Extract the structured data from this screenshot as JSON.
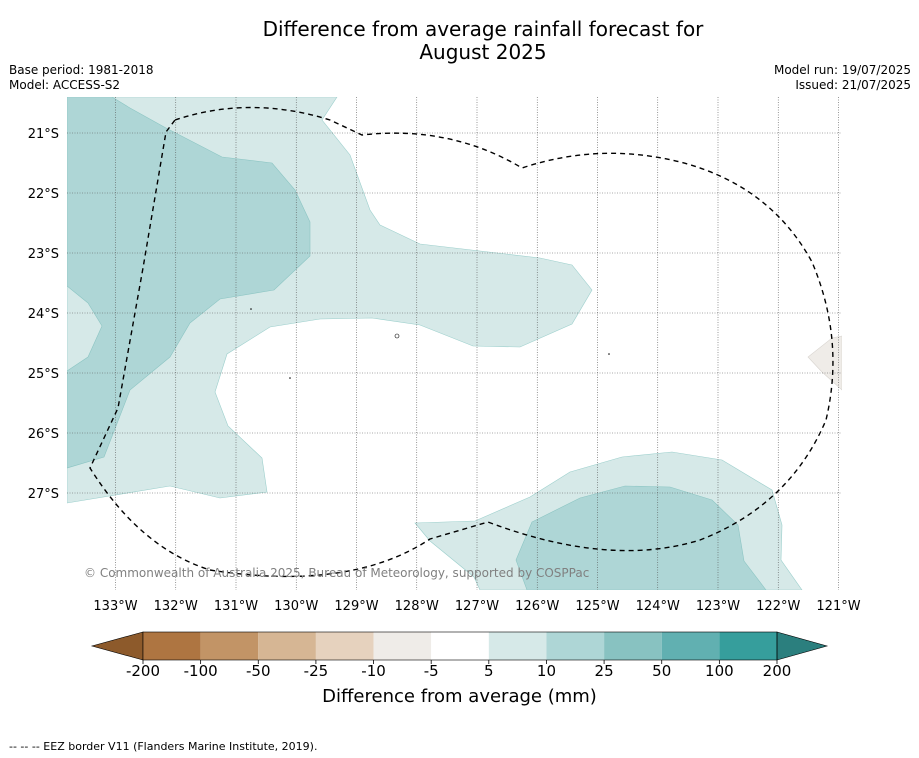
{
  "title_line1": "Difference from average rainfall forecast for",
  "title_line2": "August 2025",
  "base_period": "Base period: 1981-2018",
  "model": "Model: ACCESS-S2",
  "model_run": "Model run: 19/07/2025",
  "issued": "Issued: 21/07/2025",
  "lat_labels": [
    "21°S",
    "22°S",
    "23°S",
    "24°S",
    "25°S",
    "26°S",
    "27°S"
  ],
  "lon_labels": [
    "133°W",
    "132°W",
    "131°W",
    "130°W",
    "129°W",
    "128°W",
    "127°W",
    "126°W",
    "125°W",
    "124°W",
    "123°W",
    "122°W",
    "121°W"
  ],
  "copyright": "© Commonwealth of Australia 2025, Bureau of Meteorology, supported by COSPPac",
  "colorbar": {
    "ticks": [
      "-200",
      "-100",
      "-50",
      "-25",
      "-10",
      "-5",
      "5",
      "10",
      "25",
      "50",
      "100",
      "200"
    ],
    "colors": [
      "#ae7541",
      "#c29466",
      "#d6b694",
      "#e6d2be",
      "#efece8",
      "#ffffff",
      "#d6e9e8",
      "#aed6d6",
      "#88c2c1",
      "#61b0b1",
      "#369e9c"
    ],
    "under_color": "#8d5a2b",
    "over_color": "#2b7f7e",
    "label": "Difference from average (mm)"
  },
  "legend_note": "--  --  -- EEZ border V11 (Flanders Marine Institute, 2019)."
}
